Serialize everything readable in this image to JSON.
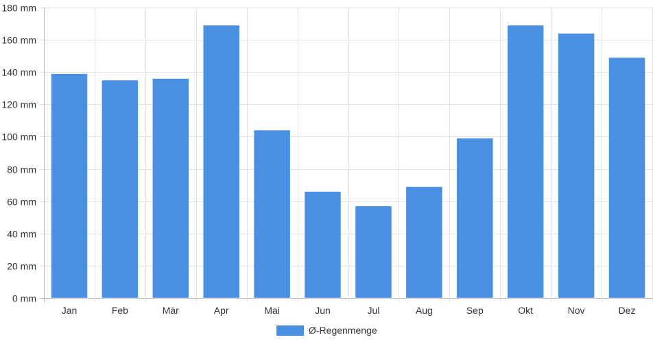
{
  "chart_data": {
    "type": "bar",
    "categories": [
      "Jan",
      "Feb",
      "Mär",
      "Apr",
      "Mai",
      "Jun",
      "Jul",
      "Aug",
      "Sep",
      "Okt",
      "Nov",
      "Dez"
    ],
    "series": [
      {
        "name": "Ø-Regenmenge",
        "values": [
          139,
          135,
          136,
          169,
          104,
          66,
          57,
          69,
          99,
          169,
          164,
          149
        ],
        "color": "#4a8fe2"
      }
    ],
    "ylim": [
      0,
      180
    ],
    "y_ticks": [
      0,
      20,
      40,
      60,
      80,
      100,
      120,
      140,
      160,
      180
    ],
    "y_unit": "mm",
    "grid": true,
    "legend_position": "bottom"
  },
  "colors": {
    "grid": "#e2e2e2",
    "axis": "#b8b8b8",
    "text": "#333333"
  }
}
